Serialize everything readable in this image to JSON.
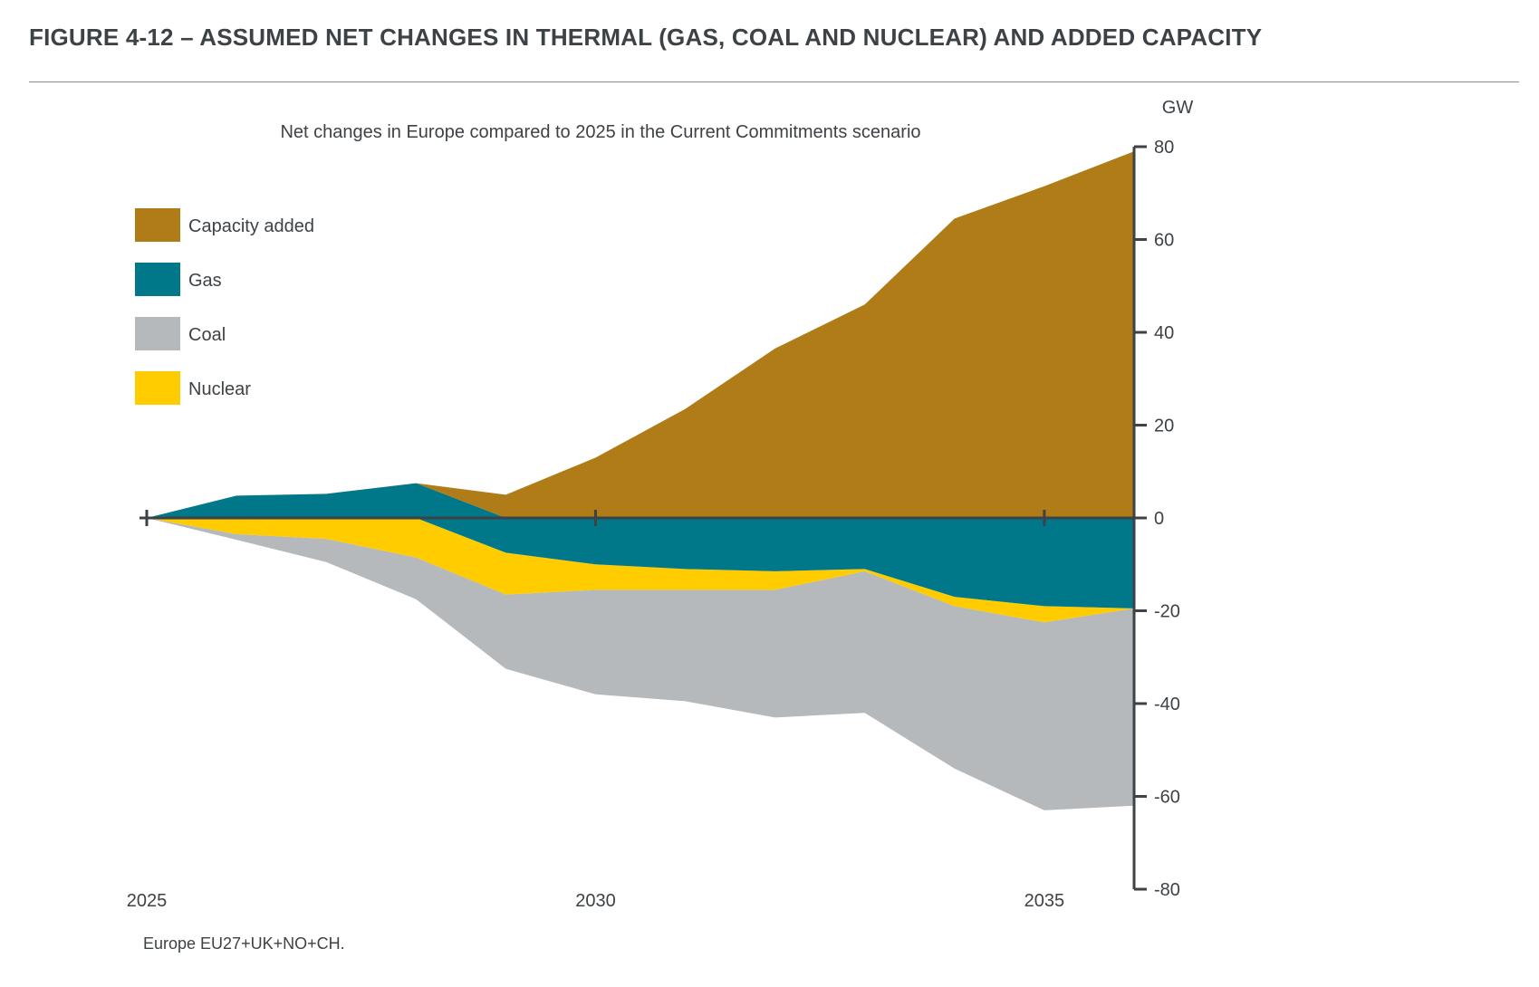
{
  "figure_title": "FIGURE 4-12 – ASSUMED NET CHANGES IN THERMAL (GAS, COAL AND NUCLEAR) AND ADDED CAPACITY",
  "footnote": "Europe EU27+UK+NO+CH.",
  "colors": {
    "capacity_added": "#b07c18",
    "gas": "#00788a",
    "coal": "#b5b9bb",
    "nuclear": "#ffcc00",
    "axis": "#3d4246",
    "text": "#3d4246"
  },
  "chart_data": {
    "type": "area",
    "title": "Net changes in Europe compared to 2025 in the Current Commitments scenario",
    "ylabel": "GW",
    "xlabel": "",
    "ylim": [
      -80,
      80
    ],
    "yticks": [
      80,
      60,
      40,
      20,
      0,
      -20,
      -40,
      -60,
      -80
    ],
    "x": [
      2025,
      2026,
      2027,
      2028,
      2029,
      2030,
      2031,
      2032,
      2033,
      2034,
      2035,
      2036
    ],
    "xlim": [
      2025,
      2036
    ],
    "xticks": [
      2025,
      2030,
      2035
    ],
    "legend": [
      "Capacity added",
      "Gas",
      "Coal",
      "Nuclear"
    ],
    "series": [
      {
        "name": "Capacity added",
        "values": [
          0,
          0,
          0,
          0,
          5,
          13,
          23.5,
          36.5,
          46,
          64.5,
          71.5,
          79
        ]
      },
      {
        "name": "Gas",
        "values": [
          0,
          4.8,
          5.2,
          7.5,
          -7.5,
          -10,
          -11,
          -11.5,
          -11,
          -17,
          -19,
          -19.5
        ]
      },
      {
        "name": "Coal",
        "values": [
          0,
          -1.2,
          -5,
          -9,
          -16,
          -22.5,
          -24,
          -27.5,
          -30.5,
          -35,
          -40.5,
          -42.5
        ]
      },
      {
        "name": "Nuclear",
        "values": [
          0,
          -3.5,
          -4.5,
          -8.5,
          -9,
          -5.5,
          -4.5,
          -4,
          -0.5,
          -2,
          -3.5,
          0
        ]
      }
    ]
  }
}
